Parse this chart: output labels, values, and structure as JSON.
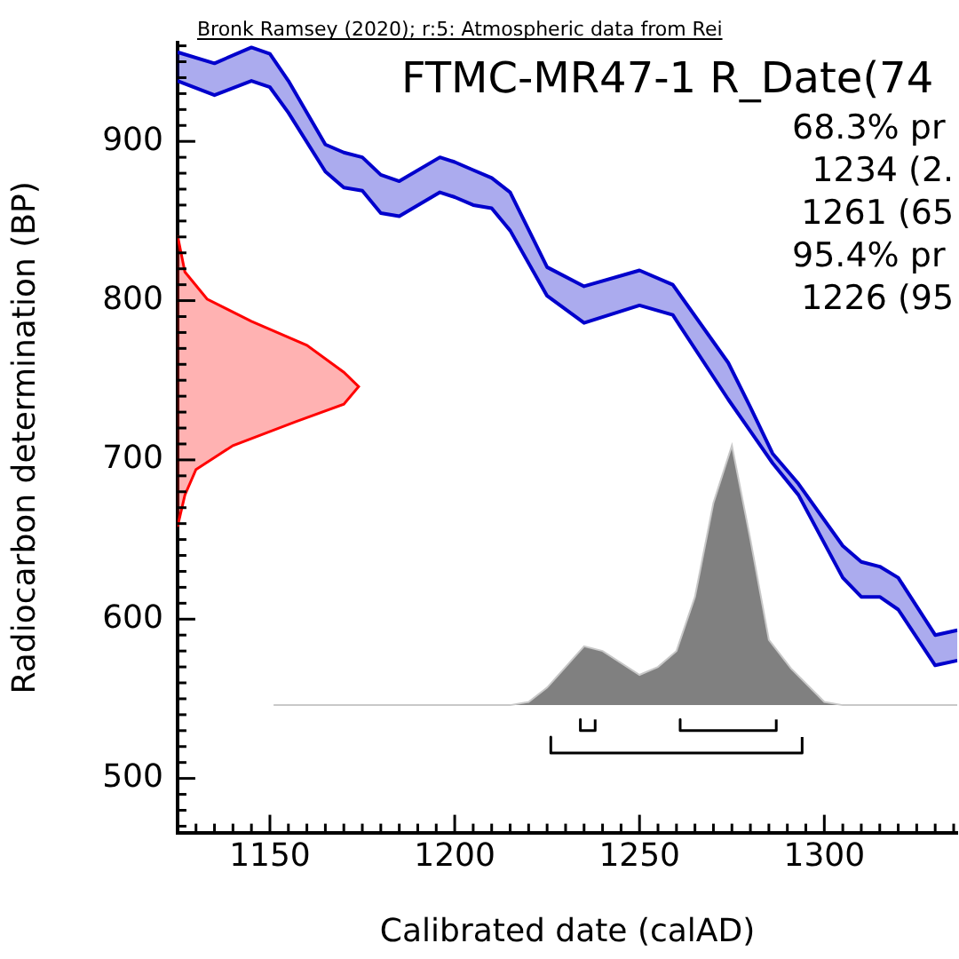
{
  "chart_data": {
    "type": "line",
    "title": "FTMC-MR47-1 R_Date(74",
    "subtitle": "Bronk Ramsey (2020); r:5: Atmospheric data from Rei",
    "xlabel": "Calibrated date (calAD)",
    "ylabel": "Radiocarbon determination (BP)",
    "annotations": [
      "68.3% pr",
      "1234 (2.",
      "1261 (65",
      "95.4% pr",
      "1226 (95"
    ],
    "xlim": [
      1125,
      1336
    ],
    "ylim": [
      466,
      962
    ],
    "xticks": [
      {
        "value": 1125,
        "label": null
      },
      {
        "value": 1130,
        "label": null
      },
      {
        "value": 1135,
        "label": null
      },
      {
        "value": 1140,
        "label": null
      },
      {
        "value": 1145,
        "label": null
      },
      1150,
      {
        "value": 1155,
        "label": null
      },
      {
        "value": 1160,
        "label": null
      },
      {
        "value": 1165,
        "label": null
      },
      {
        "value": 1170,
        "label": null
      },
      {
        "value": 1175,
        "label": null
      },
      {
        "value": 1180,
        "label": null
      },
      {
        "value": 1185,
        "label": null
      },
      {
        "value": 1190,
        "label": null
      },
      {
        "value": 1195,
        "label": null
      },
      1200,
      {
        "value": 1205,
        "label": null
      },
      {
        "value": 1210,
        "label": null
      },
      {
        "value": 1215,
        "label": null
      },
      {
        "value": 1220,
        "label": null
      },
      {
        "value": 1225,
        "label": null
      },
      {
        "value": 1230,
        "label": null
      },
      {
        "value": 1235,
        "label": null
      },
      {
        "value": 1240,
        "label": null
      },
      {
        "value": 1245,
        "label": null
      },
      1250,
      {
        "value": 1255,
        "label": null
      },
      {
        "value": 1260,
        "label": null
      },
      {
        "value": 1265,
        "label": null
      },
      {
        "value": 1270,
        "label": null
      },
      {
        "value": 1275,
        "label": null
      },
      {
        "value": 1280,
        "label": null
      },
      {
        "value": 1285,
        "label": null
      },
      {
        "value": 1290,
        "label": null
      },
      {
        "value": 1295,
        "label": null
      },
      1300,
      {
        "value": 1305,
        "label": null
      },
      {
        "value": 1310,
        "label": null
      },
      {
        "value": 1315,
        "label": null
      },
      {
        "value": 1320,
        "label": null
      },
      {
        "value": 1325,
        "label": null
      },
      {
        "value": 1330,
        "label": null
      },
      {
        "value": 1335,
        "label": null
      }
    ],
    "yticks": [
      {
        "value": 470,
        "label": null
      },
      {
        "value": 480,
        "label": null
      },
      {
        "value": 490,
        "label": null
      },
      500,
      {
        "value": 510,
        "label": null
      },
      {
        "value": 520,
        "label": null
      },
      {
        "value": 530,
        "label": null
      },
      {
        "value": 540,
        "label": null
      },
      {
        "value": 550,
        "label": null
      },
      {
        "value": 560,
        "label": null
      },
      {
        "value": 570,
        "label": null
      },
      {
        "value": 580,
        "label": null
      },
      {
        "value": 590,
        "label": null
      },
      600,
      {
        "value": 610,
        "label": null
      },
      {
        "value": 620,
        "label": null
      },
      {
        "value": 630,
        "label": null
      },
      {
        "value": 640,
        "label": null
      },
      {
        "value": 650,
        "label": null
      },
      {
        "value": 660,
        "label": null
      },
      {
        "value": 670,
        "label": null
      },
      {
        "value": 680,
        "label": null
      },
      {
        "value": 690,
        "label": null
      },
      700,
      {
        "value": 710,
        "label": null
      },
      {
        "value": 720,
        "label": null
      },
      {
        "value": 730,
        "label": null
      },
      {
        "value": 740,
        "label": null
      },
      {
        "value": 750,
        "label": null
      },
      {
        "value": 760,
        "label": null
      },
      {
        "value": 770,
        "label": null
      },
      {
        "value": 780,
        "label": null
      },
      {
        "value": 790,
        "label": null
      },
      800,
      {
        "value": 810,
        "label": null
      },
      {
        "value": 820,
        "label": null
      },
      {
        "value": 830,
        "label": null
      },
      {
        "value": 840,
        "label": null
      },
      {
        "value": 850,
        "label": null
      },
      {
        "value": 860,
        "label": null
      },
      {
        "value": 870,
        "label": null
      },
      {
        "value": 880,
        "label": null
      },
      {
        "value": 890,
        "label": null
      },
      900,
      {
        "value": 910,
        "label": null
      },
      {
        "value": 920,
        "label": null
      },
      {
        "value": 930,
        "label": null
      },
      {
        "value": 940,
        "label": null
      },
      {
        "value": 950,
        "label": null
      },
      {
        "value": 960,
        "label": null
      }
    ],
    "series": [
      {
        "color": "#0000cc",
        "x": [
          1125,
          1135,
          1145,
          1150,
          1155,
          1165,
          1170,
          1175,
          1180,
          1185,
          1196,
          1200,
          1205,
          1210,
          1215,
          1225,
          1235,
          1250,
          1259,
          1274,
          1280,
          1286,
          1293,
          1305,
          1310,
          1315,
          1320,
          1330,
          1336
        ],
        "values": [
          956,
          949,
          959,
          955,
          938,
          898,
          893,
          890,
          879,
          875,
          890,
          887,
          882,
          877,
          868,
          821,
          809,
          819,
          810,
          761,
          733,
          704,
          685,
          646,
          636,
          633,
          626,
          590,
          593
        ]
      },
      {
        "color": "#0000cc",
        "x": [
          1125,
          1135,
          1145,
          1150,
          1155,
          1165,
          1170,
          1175,
          1180,
          1185,
          1196,
          1200,
          1205,
          1210,
          1215,
          1225,
          1235,
          1250,
          1259,
          1274,
          1280,
          1286,
          1293,
          1305,
          1310,
          1315,
          1320,
          1330,
          1336
        ],
        "values": [
          938,
          929,
          938,
          934,
          918,
          881,
          871,
          869,
          855,
          853,
          868,
          865,
          860,
          858,
          844,
          803,
          786,
          797,
          791,
          738,
          718,
          698,
          678,
          626,
          614,
          614,
          606,
          571,
          574
        ],
        "upper": [
          956,
          949,
          959,
          955,
          938,
          898,
          893,
          890,
          879,
          875,
          890,
          887,
          882,
          877,
          868,
          821,
          809,
          819,
          810,
          761,
          733,
          704,
          685,
          646,
          636,
          633,
          626,
          590,
          593
        ],
        "lower": [
          938,
          929,
          938,
          934,
          918,
          881,
          871,
          869,
          855,
          853,
          868,
          865,
          860,
          858,
          844,
          803,
          786,
          797,
          791,
          738,
          718,
          698,
          678,
          626,
          614,
          614,
          606,
          571,
          574
        ]
      },
      {
        "color": "#000000",
        "x": [
          1234,
          1234,
          1238,
          1238
        ],
        "values": [
          537,
          530,
          530,
          537
        ]
      },
      {
        "color": "#000000",
        "x": [
          1261,
          1261,
          1287,
          1287
        ],
        "values": [
          537,
          530,
          530,
          537
        ]
      },
      {
        "color": "#000000",
        "x": [
          1226,
          1226,
          1294,
          1294
        ],
        "values": [
          526,
          516,
          516,
          526
        ]
      },
      {
        "type": "area",
        "color": "#ff0000",
        "x": [
          1125,
          1127,
          1133,
          1145,
          1160,
          1170,
          1174,
          1170,
          1157,
          1140,
          1130,
          1127,
          1125
        ],
        "values": [
          841,
          818,
          801,
          787,
          772,
          755,
          746,
          735,
          724,
          709,
          694,
          678,
          658
        ]
      },
      {
        "type": "area",
        "color": "#808080",
        "x": [
          1151,
          1215,
          1220,
          1225,
          1235,
          1240,
          1250,
          1255,
          1260,
          1265,
          1270,
          1275,
          1280,
          1285,
          1291,
          1300,
          1305,
          1336
        ],
        "values": [
          546,
          546,
          548,
          557,
          583,
          580,
          565,
          570,
          580,
          614,
          673,
          709,
          650,
          587,
          569,
          548,
          546,
          546
        ]
      }
    ]
  }
}
